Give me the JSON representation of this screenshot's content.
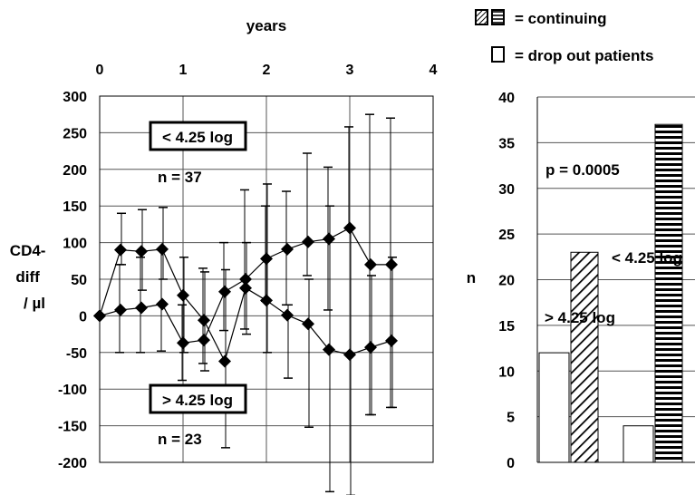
{
  "chart_data": [
    {
      "type": "scatter",
      "xlabel_top": "years",
      "ylabel": "CD4-\ndiff\n/ µl",
      "xlim": [
        0,
        4
      ],
      "ylim": [
        -200,
        300
      ],
      "x_ticks": [
        "0",
        "1",
        "2",
        "3",
        "4"
      ],
      "y_ticks": [
        "300",
        "250",
        "200",
        "150",
        "100",
        "50",
        "0",
        "-50",
        "-100",
        "-150",
        "-200"
      ],
      "grid": true,
      "annotations": [
        {
          "text": "< 4.25 log",
          "boxed": true
        },
        {
          "text": "n = 37",
          "boxed": false
        },
        {
          "text": "> 4.25 log",
          "boxed": true
        },
        {
          "text": "n = 23",
          "boxed": false
        }
      ],
      "series": [
        {
          "name": "< 4.25 log",
          "x": [
            0,
            0.25,
            0.5,
            0.75,
            1.0,
            1.25,
            1.5,
            1.75,
            2.0,
            2.25,
            2.5,
            2.75,
            3.0,
            3.25,
            3.5
          ],
          "y": [
            0,
            8,
            11,
            16,
            -37,
            -33,
            33,
            50,
            78,
            91,
            101,
            105,
            120,
            70,
            70
          ],
          "err_low": [
            0,
            -50,
            -50,
            -48,
            -88,
            -65,
            -20,
            -18,
            20,
            15,
            55,
            8,
            120,
            -135,
            -125
          ],
          "err_high": [
            0,
            70,
            80,
            90,
            15,
            65,
            100,
            172,
            150,
            170,
            222,
            203,
            258,
            275,
            270
          ]
        },
        {
          "name": "> 4.25 log",
          "x": [
            0,
            0.25,
            0.5,
            0.75,
            1.0,
            1.25,
            1.5,
            1.75,
            2.0,
            2.25,
            2.5,
            2.75,
            3.0,
            3.25,
            3.5
          ],
          "y": [
            0,
            90,
            88,
            91,
            28,
            -6,
            -62,
            38,
            21,
            1,
            -11,
            -46,
            -53,
            -43,
            -34
          ],
          "err_low": [
            0,
            70,
            35,
            50,
            -50,
            -75,
            -180,
            -25,
            -50,
            -85,
            -152,
            -240,
            -245,
            -135,
            -125
          ],
          "err_high": [
            0,
            140,
            145,
            148,
            80,
            60,
            63,
            100,
            180,
            15,
            50,
            150,
            120,
            55,
            80
          ]
        }
      ]
    },
    {
      "type": "bar",
      "ylabel": "n",
      "ylim": [
        0,
        40
      ],
      "y_ticks": [
        "40",
        "35",
        "30",
        "25",
        "20",
        "15",
        "10",
        "5",
        "0"
      ],
      "grid": true,
      "legend": [
        {
          "label": "= continuing",
          "swatch": "hatched"
        },
        {
          "label": "= drop out patients",
          "swatch": "open"
        }
      ],
      "annotations": [
        {
          "text": "p = 0.0005"
        },
        {
          "text": "> 4.25 log"
        },
        {
          "text": "< 4.25 log"
        }
      ],
      "groups": [
        {
          "label": "> 4.25 log",
          "drop_out": 12,
          "continuing": 23,
          "hatch": "diagonal"
        },
        {
          "label": "< 4.25 log",
          "drop_out": 4,
          "continuing": 37,
          "hatch": "horizontal"
        }
      ]
    }
  ]
}
